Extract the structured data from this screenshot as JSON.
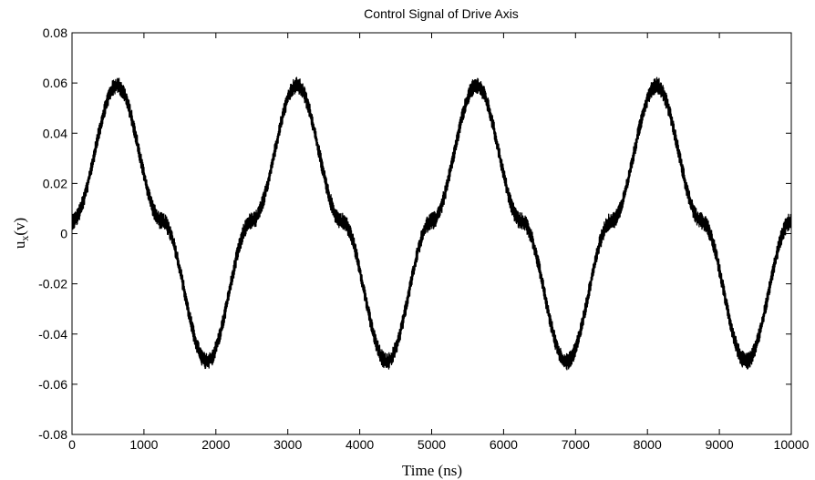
{
  "chart_data": {
    "type": "line",
    "title": "Control Signal of Drive Axis",
    "xlabel": "Time (ns)",
    "ylabel_main": "u",
    "ylabel_sub": "x",
    "ylabel_tail": "(v)",
    "xlim": [
      0,
      10000
    ],
    "ylim": [
      -0.08,
      0.08
    ],
    "x_ticks": [
      0,
      1000,
      2000,
      3000,
      4000,
      5000,
      6000,
      7000,
      8000,
      9000,
      10000
    ],
    "x_tick_labels": [
      "0",
      "1000",
      "2000",
      "3000",
      "4000",
      "5000",
      "6000",
      "7000",
      "8000",
      "9000",
      "10000"
    ],
    "y_ticks": [
      0.08,
      0.06,
      0.04,
      0.02,
      0,
      -0.02,
      -0.04,
      -0.06,
      -0.08
    ],
    "y_tick_labels": [
      "0.08",
      "0.06",
      "0.04",
      "0.02",
      "0",
      "-0.02",
      "-0.04",
      "-0.06",
      "-0.08"
    ],
    "grid": false,
    "series": [
      {
        "color": "#000000",
        "x": [
          0,
          625,
          1250,
          1875,
          2500,
          3125,
          3750,
          4375,
          5000,
          5625,
          6250,
          6875,
          7500,
          8125,
          8750,
          9375,
          10000
        ],
        "y": [
          0.005,
          0.059,
          0.005,
          -0.051,
          0.005,
          0.059,
          0.005,
          -0.051,
          0.005,
          0.059,
          0.005,
          -0.051,
          0.005,
          0.059,
          0.005,
          -0.051,
          0.005
        ]
      }
    ]
  }
}
